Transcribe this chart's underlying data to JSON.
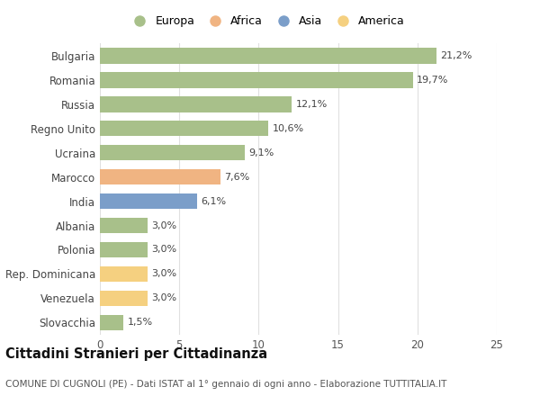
{
  "categories": [
    "Bulgaria",
    "Romania",
    "Russia",
    "Regno Unito",
    "Ucraina",
    "Marocco",
    "India",
    "Albania",
    "Polonia",
    "Rep. Dominicana",
    "Venezuela",
    "Slovacchia"
  ],
  "values": [
    21.2,
    19.7,
    12.1,
    10.6,
    9.1,
    7.6,
    6.1,
    3.0,
    3.0,
    3.0,
    3.0,
    1.5
  ],
  "labels": [
    "21,2%",
    "19,7%",
    "12,1%",
    "10,6%",
    "9,1%",
    "7,6%",
    "6,1%",
    "3,0%",
    "3,0%",
    "3,0%",
    "3,0%",
    "1,5%"
  ],
  "colors": [
    "#a8c08a",
    "#a8c08a",
    "#a8c08a",
    "#a8c08a",
    "#a8c08a",
    "#f0b482",
    "#7b9ec9",
    "#a8c08a",
    "#a8c08a",
    "#f5d080",
    "#f5d080",
    "#a8c08a"
  ],
  "legend": [
    {
      "label": "Europa",
      "color": "#a8c08a"
    },
    {
      "label": "Africa",
      "color": "#f0b482"
    },
    {
      "label": "Asia",
      "color": "#7b9ec9"
    },
    {
      "label": "America",
      "color": "#f5d080"
    }
  ],
  "title": "Cittadini Stranieri per Cittadinanza",
  "subtitle": "COMUNE DI CUGNOLI (PE) - Dati ISTAT al 1° gennaio di ogni anno - Elaborazione TUTTITALIA.IT",
  "xlim": [
    0,
    25
  ],
  "xticks": [
    0,
    5,
    10,
    15,
    20,
    25
  ],
  "background_color": "#ffffff",
  "grid_color": "#e0e0e0",
  "bar_height": 0.65,
  "label_fontsize": 8,
  "tick_fontsize": 8.5,
  "title_fontsize": 10.5,
  "subtitle_fontsize": 7.5,
  "legend_fontsize": 9
}
